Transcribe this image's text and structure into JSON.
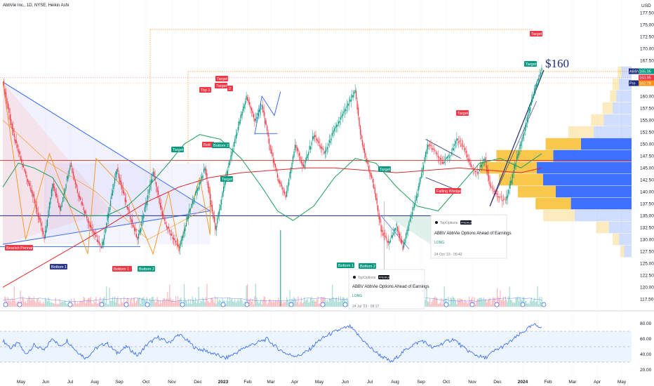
{
  "title": "AbbVie Inc., 1D, NYSE, Heikin Ashi",
  "currency": "USD",
  "colors": {
    "up": "#089981",
    "down": "#f23645",
    "blue": "#2962ff",
    "orange": "#f7931a",
    "green_ma": "#1b9e5a",
    "red_ma": "#e0282e",
    "rsi": "#2962ff",
    "rsi_band": "#e3efff",
    "vp_blue": "#2962ff",
    "vp_yellow": "#f9bd2e"
  },
  "chart_data": {
    "type": "candlestick",
    "x": [
      "May",
      "Jun",
      "Jul",
      "Aug",
      "Sep",
      "Oct",
      "Nov",
      "Dec",
      "2023",
      "Feb",
      "Mar",
      "Apr",
      "May",
      "Jun",
      "Jul",
      "Aug",
      "Sep",
      "Oct",
      "Nov",
      "Dec",
      "2024",
      "Feb",
      "Mar",
      "Apr",
      "May"
    ],
    "y_ticks": [
      117.5,
      120.0,
      122.5,
      125.0,
      127.5,
      130.0,
      132.5,
      135.0,
      137.5,
      140.0,
      142.5,
      145.0,
      147.5,
      150.0,
      152.5,
      155.0,
      157.5,
      160.0,
      162.5,
      165.0,
      167.5,
      170.0,
      172.5,
      175.0,
      177.5
    ],
    "ylim": [
      115.5,
      179
    ],
    "close_key_points": [
      [
        0,
        163
      ],
      [
        10,
        152
      ],
      [
        18,
        146
      ],
      [
        28,
        140
      ],
      [
        40,
        130
      ],
      [
        48,
        142
      ],
      [
        55,
        136
      ],
      [
        65,
        146
      ],
      [
        72,
        140
      ],
      [
        82,
        134
      ],
      [
        95,
        128
      ],
      [
        110,
        145
      ],
      [
        118,
        138
      ],
      [
        130,
        130
      ],
      [
        145,
        144
      ],
      [
        155,
        134
      ],
      [
        170,
        128
      ],
      [
        180,
        136
      ],
      [
        195,
        145
      ],
      [
        205,
        132
      ],
      [
        215,
        143
      ],
      [
        225,
        152
      ],
      [
        235,
        160
      ],
      [
        243,
        155
      ],
      [
        250,
        158
      ],
      [
        258,
        149
      ],
      [
        265,
        143
      ],
      [
        273,
        139
      ],
      [
        282,
        150
      ],
      [
        290,
        145
      ],
      [
        300,
        152
      ],
      [
        310,
        148
      ],
      [
        320,
        153
      ],
      [
        330,
        157
      ],
      [
        340,
        161
      ],
      [
        345,
        152
      ],
      [
        350,
        147
      ],
      [
        358,
        141
      ],
      [
        365,
        132
      ],
      [
        372,
        129
      ],
      [
        380,
        133
      ],
      [
        386,
        128
      ],
      [
        392,
        134
      ],
      [
        398,
        138
      ],
      [
        405,
        145
      ],
      [
        410,
        150
      ],
      [
        418,
        148
      ],
      [
        425,
        146
      ],
      [
        432,
        148
      ],
      [
        438,
        151
      ],
      [
        445,
        149
      ],
      [
        452,
        145
      ],
      [
        458,
        144
      ],
      [
        465,
        147
      ],
      [
        470,
        141
      ],
      [
        478,
        139
      ],
      [
        485,
        138
      ],
      [
        490,
        142
      ],
      [
        496,
        147
      ],
      [
        502,
        152
      ],
      [
        508,
        157
      ],
      [
        515,
        163
      ],
      [
        520,
        166
      ]
    ],
    "ma_green_key_points": [
      [
        0,
        141
      ],
      [
        15,
        146
      ],
      [
        30,
        145
      ],
      [
        48,
        143
      ],
      [
        65,
        137
      ],
      [
        80,
        135
      ],
      [
        100,
        135
      ],
      [
        120,
        137
      ],
      [
        140,
        141
      ],
      [
        160,
        146
      ],
      [
        175,
        150
      ],
      [
        190,
        152
      ],
      [
        210,
        151
      ],
      [
        230,
        147
      ],
      [
        250,
        141
      ],
      [
        265,
        136
      ],
      [
        280,
        134
      ],
      [
        300,
        137
      ],
      [
        320,
        143
      ],
      [
        340,
        147
      ],
      [
        360,
        146
      ],
      [
        380,
        141
      ],
      [
        400,
        137
      ],
      [
        420,
        136
      ],
      [
        440,
        141
      ],
      [
        460,
        146
      ],
      [
        480,
        147
      ],
      [
        500,
        145
      ],
      [
        520,
        148
      ]
    ],
    "ma_red_key_points": [
      [
        0,
        120
      ],
      [
        40,
        125
      ],
      [
        80,
        130
      ],
      [
        110,
        134
      ],
      [
        140,
        138
      ],
      [
        170,
        141
      ],
      [
        200,
        143
      ],
      [
        230,
        144
      ],
      [
        260,
        144.5
      ],
      [
        290,
        145
      ],
      [
        320,
        145
      ],
      [
        350,
        144.5
      ],
      [
        380,
        144
      ],
      [
        410,
        144.5
      ],
      [
        440,
        145
      ],
      [
        470,
        144.5
      ],
      [
        500,
        144
      ],
      [
        520,
        145
      ]
    ],
    "rsi_key_points": [
      [
        0,
        58
      ],
      [
        8,
        48
      ],
      [
        15,
        55
      ],
      [
        22,
        40
      ],
      [
        30,
        52
      ],
      [
        40,
        45
      ],
      [
        48,
        62
      ],
      [
        55,
        50
      ],
      [
        62,
        58
      ],
      [
        70,
        46
      ],
      [
        80,
        35
      ],
      [
        90,
        48
      ],
      [
        100,
        55
      ],
      [
        110,
        42
      ],
      [
        120,
        50
      ],
      [
        130,
        38
      ],
      [
        140,
        54
      ],
      [
        150,
        62
      ],
      [
        160,
        55
      ],
      [
        170,
        66
      ],
      [
        178,
        58
      ],
      [
        186,
        48
      ],
      [
        195,
        45
      ],
      [
        205,
        40
      ],
      [
        215,
        35
      ],
      [
        225,
        42
      ],
      [
        235,
        50
      ],
      [
        245,
        55
      ],
      [
        255,
        60
      ],
      [
        265,
        48
      ],
      [
        275,
        40
      ],
      [
        285,
        38
      ],
      [
        295,
        45
      ],
      [
        305,
        58
      ],
      [
        315,
        66
      ],
      [
        325,
        72
      ],
      [
        335,
        76
      ],
      [
        345,
        62
      ],
      [
        355,
        48
      ],
      [
        365,
        38
      ],
      [
        375,
        30
      ],
      [
        385,
        42
      ],
      [
        395,
        52
      ],
      [
        405,
        58
      ],
      [
        415,
        48
      ],
      [
        425,
        55
      ],
      [
        435,
        60
      ],
      [
        445,
        48
      ],
      [
        455,
        40
      ],
      [
        465,
        35
      ],
      [
        475,
        45
      ],
      [
        485,
        52
      ],
      [
        495,
        62
      ],
      [
        505,
        72
      ],
      [
        512,
        78
      ],
      [
        520,
        76
      ]
    ],
    "volume_profile": [
      {
        "price": 127.5,
        "blue": 0.06,
        "yellow": 0.03
      },
      {
        "price": 130.0,
        "blue": 0.1,
        "yellow": 0.05
      },
      {
        "price": 132.5,
        "blue": 0.18,
        "yellow": 0.1
      },
      {
        "price": 135.0,
        "blue": 0.45,
        "yellow": 0.25
      },
      {
        "price": 137.5,
        "blue": 0.48,
        "yellow": 0.28
      },
      {
        "price": 140.0,
        "blue": 0.6,
        "yellow": 0.3
      },
      {
        "price": 142.5,
        "blue": 0.7,
        "yellow": 0.35
      },
      {
        "price": 145.0,
        "blue": 0.75,
        "yellow": 0.45
      },
      {
        "price": 147.5,
        "blue": 0.62,
        "yellow": 0.45
      },
      {
        "price": 150.0,
        "blue": 0.4,
        "yellow": 0.28
      },
      {
        "price": 152.5,
        "blue": 0.3,
        "yellow": 0.2
      },
      {
        "price": 155.0,
        "blue": 0.22,
        "yellow": 0.1
      },
      {
        "price": 157.5,
        "blue": 0.15,
        "yellow": 0.08
      },
      {
        "price": 160.0,
        "blue": 0.12,
        "yellow": 0.05
      },
      {
        "price": 162.5,
        "blue": 0.1,
        "yellow": 0.05
      },
      {
        "price": 165.0,
        "blue": 0.08,
        "yellow": 0.03
      }
    ],
    "rsi_ticks": [
      20.0,
      40.0,
      60.0,
      80.0
    ],
    "rsi_band": [
      30,
      70
    ]
  },
  "price_tags": [
    {
      "text": "ABBV",
      "value": "165.05",
      "color": "#089981"
    },
    {
      "text": "",
      "value": "163.95",
      "color": "#f23645"
    },
    {
      "text": "Pre",
      "value": "162.78",
      "color": "#f7931a"
    }
  ],
  "annotations": {
    "big_price": "$160",
    "labels": {
      "bearish_pennant": "Bearish Pennant",
      "bottom1_a": "Bottom 1",
      "bottom1_b": "Bottom 1",
      "bottom2_b": "Bottom 2",
      "bottom1_c": "Bottom 1",
      "bottom2_c": "Bottom 2",
      "top1": "Top 1",
      "top2": "2",
      "bott": "Bott",
      "bottom2_top": "Bottom 2",
      "target_list": [
        "Target",
        "Target",
        "Target",
        "Target",
        "Target",
        "Target",
        "Target",
        "Target"
      ],
      "falling_wedge": "Falling Wedge"
    }
  },
  "idea_cards": [
    {
      "brand": "TopOptions",
      "badge": "PREMIUM",
      "title": "ABBV AbbVie Options Ahead of Earnings",
      "signal": "LONG",
      "date": "24 Oct '23 · 09:42"
    },
    {
      "brand": "TopOptions",
      "badge": "PREMIUM",
      "title": "ABBV AbbVie Options Ahead of Earnings",
      "signal": "LONG",
      "date": "24 Jul '23 · 09:17"
    }
  ]
}
